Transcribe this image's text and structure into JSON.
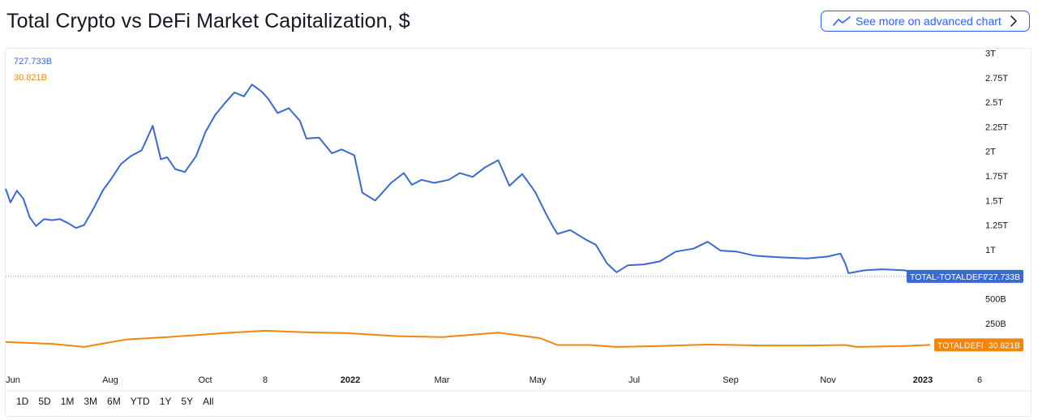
{
  "header": {
    "title": "Total Crypto vs DeFi Market Capitalization, $",
    "advanced_button": "See more on advanced chart"
  },
  "ranges": [
    "1D",
    "5D",
    "1M",
    "3M",
    "6M",
    "YTD",
    "1Y",
    "5Y",
    "All"
  ],
  "colors": {
    "total": "#3a69d6",
    "defi": "#f0860e",
    "axis_text": "#131722",
    "accent": "#2962ff"
  },
  "chart_data": {
    "type": "line",
    "title": "Total Crypto vs DeFi Market Capitalization, $",
    "x_ticks": [
      "Jun",
      "Aug",
      "Oct",
      "8",
      "2022",
      "Mar",
      "May",
      "Jul",
      "Sep",
      "Nov",
      "2023",
      "6"
    ],
    "x_ticks_bold": [
      "2022",
      "2023"
    ],
    "y_ticks": [
      {
        "v": 3000,
        "label": "3T"
      },
      {
        "v": 2750,
        "label": "2.75T"
      },
      {
        "v": 2500,
        "label": "2.5T"
      },
      {
        "v": 2250,
        "label": "2.25T"
      },
      {
        "v": 2000,
        "label": "2T"
      },
      {
        "v": 1750,
        "label": "1.75T"
      },
      {
        "v": 1500,
        "label": "1.5T"
      },
      {
        "v": 1250,
        "label": "1.25T"
      },
      {
        "v": 1000,
        "label": "1T"
      },
      {
        "v": 500,
        "label": "500B"
      },
      {
        "v": 250,
        "label": "250B"
      }
    ],
    "y_unit": "B",
    "ylim": [
      -250,
      3050
    ],
    "series": [
      {
        "name": "TOTAL-TOTALDEFI",
        "legend_value": "727.733B",
        "last_value": 727.733,
        "color": "#3a69d6",
        "x": [
          "2021-06-01",
          "2021-06-04",
          "2021-06-08",
          "2021-06-12",
          "2021-06-16",
          "2021-06-20",
          "2021-06-25",
          "2021-06-30",
          "2021-07-05",
          "2021-07-10",
          "2021-07-15",
          "2021-07-20",
          "2021-07-25",
          "2021-08-01",
          "2021-08-06",
          "2021-08-12",
          "2021-08-18",
          "2021-08-25",
          "2021-09-01",
          "2021-09-06",
          "2021-09-10",
          "2021-09-15",
          "2021-09-21",
          "2021-09-28",
          "2021-10-04",
          "2021-10-10",
          "2021-10-16",
          "2021-10-22",
          "2021-10-28",
          "2021-11-02",
          "2021-11-08",
          "2021-11-12",
          "2021-11-18",
          "2021-11-25",
          "2021-12-02",
          "2021-12-06",
          "2021-12-14",
          "2021-12-22",
          "2021-12-28",
          "2022-01-05",
          "2022-01-10",
          "2022-01-18",
          "2022-01-22",
          "2022-01-28",
          "2022-02-05",
          "2022-02-10",
          "2022-02-16",
          "2022-02-24",
          "2022-03-05",
          "2022-03-12",
          "2022-03-20",
          "2022-03-28",
          "2022-04-05",
          "2022-04-12",
          "2022-04-20",
          "2022-04-28",
          "2022-05-05",
          "2022-05-09",
          "2022-05-12",
          "2022-05-20",
          "2022-05-30",
          "2022-06-05",
          "2022-06-12",
          "2022-06-18",
          "2022-06-25",
          "2022-07-05",
          "2022-07-15",
          "2022-07-25",
          "2022-08-05",
          "2022-08-14",
          "2022-08-22",
          "2022-09-01",
          "2022-09-12",
          "2022-09-20",
          "2022-10-01",
          "2022-10-15",
          "2022-10-28",
          "2022-11-05",
          "2022-11-08",
          "2022-11-10",
          "2022-11-20",
          "2022-12-01",
          "2022-12-15",
          "2022-12-31"
        ],
        "values": [
          1620,
          1480,
          1600,
          1520,
          1330,
          1240,
          1310,
          1300,
          1310,
          1270,
          1220,
          1250,
          1390,
          1610,
          1720,
          1870,
          1950,
          2010,
          2260,
          1920,
          1940,
          1820,
          1790,
          1950,
          2200,
          2370,
          2490,
          2600,
          2560,
          2680,
          2610,
          2540,
          2390,
          2440,
          2310,
          2130,
          2140,
          1980,
          2020,
          1960,
          1580,
          1500,
          1570,
          1680,
          1780,
          1660,
          1710,
          1680,
          1710,
          1780,
          1740,
          1840,
          1910,
          1650,
          1770,
          1590,
          1360,
          1240,
          1160,
          1200,
          1100,
          1050,
          860,
          770,
          840,
          850,
          880,
          980,
          1010,
          1080,
          990,
          980,
          940,
          930,
          920,
          910,
          930,
          960,
          860,
          760,
          790,
          800,
          790,
          727.733
        ]
      },
      {
        "name": "TOTALDEFI",
        "legend_value": "30.821B",
        "last_value": 30.821,
        "color": "#f0860e",
        "x": [
          "2021-06-01",
          "2021-07-01",
          "2021-07-20",
          "2021-08-15",
          "2021-09-10",
          "2021-10-15",
          "2021-11-10",
          "2021-12-05",
          "2022-01-01",
          "2022-02-01",
          "2022-03-01",
          "2022-04-05",
          "2022-05-01",
          "2022-05-12",
          "2022-06-01",
          "2022-06-18",
          "2022-07-15",
          "2022-08-15",
          "2022-09-15",
          "2022-10-15",
          "2022-11-08",
          "2022-11-15",
          "2022-12-15",
          "2022-12-31"
        ],
        "values": [
          60,
          40,
          10,
          85,
          110,
          150,
          175,
          160,
          150,
          120,
          110,
          155,
          100,
          30,
          30,
          10,
          20,
          35,
          25,
          25,
          30,
          10,
          20,
          30.821
        ]
      }
    ]
  }
}
